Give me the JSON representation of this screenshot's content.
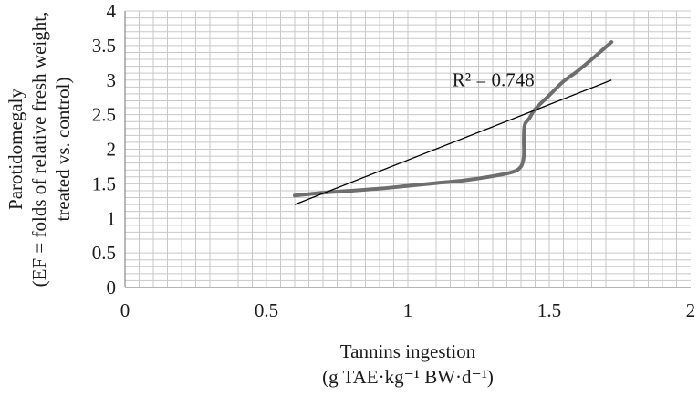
{
  "chart_data": {
    "type": "line",
    "xlabel": [
      "Tannins ingestion",
      "(g TAE·kg⁻¹ BW·d⁻¹)"
    ],
    "ylabel": [
      "Parotidomegaly",
      "(EF = folds of relative fresh weight,",
      "treated vs. control)"
    ],
    "xlim": [
      0,
      2
    ],
    "ylim": [
      0,
      4
    ],
    "xticks": [
      "0",
      "0.5",
      "1",
      "1.5",
      "2"
    ],
    "yticks": [
      "0",
      "0.5",
      "1",
      "1.5",
      "2",
      "2.5",
      "3",
      "3.5",
      "4"
    ],
    "grid": true,
    "series": [
      {
        "role": "data",
        "color": "#6e6e6e",
        "points": [
          [
            0.6,
            1.33
          ],
          [
            0.7,
            1.37
          ],
          [
            0.8,
            1.4
          ],
          [
            0.9,
            1.43
          ],
          [
            1.0,
            1.47
          ],
          [
            1.1,
            1.51
          ],
          [
            1.2,
            1.55
          ],
          [
            1.3,
            1.61
          ],
          [
            1.37,
            1.67
          ],
          [
            1.4,
            1.75
          ],
          [
            1.41,
            1.9
          ],
          [
            1.41,
            2.15
          ],
          [
            1.413,
            2.35
          ],
          [
            1.43,
            2.45
          ],
          [
            1.45,
            2.58
          ],
          [
            1.5,
            2.78
          ],
          [
            1.55,
            2.98
          ],
          [
            1.6,
            3.13
          ],
          [
            1.65,
            3.3
          ],
          [
            1.72,
            3.55
          ]
        ]
      },
      {
        "role": "linear-trendline",
        "color": "#000000",
        "points": [
          [
            0.6,
            1.2
          ],
          [
            1.72,
            3.0
          ]
        ]
      }
    ],
    "annotations": [
      {
        "text": "R² = 0.748",
        "x": 1.38,
        "y": 2.95
      }
    ]
  }
}
